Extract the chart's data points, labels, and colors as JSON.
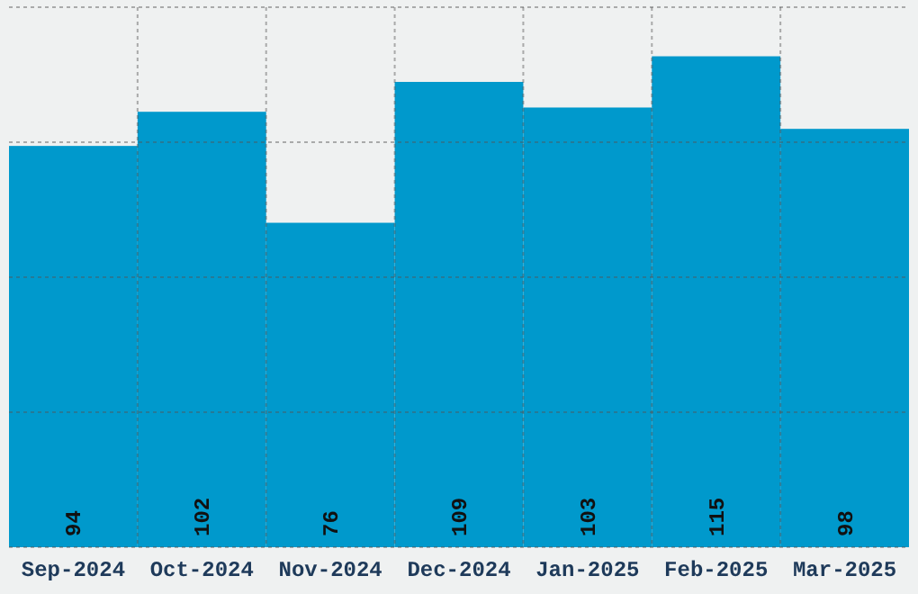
{
  "chart_data": {
    "type": "bar",
    "categories": [
      "Sep-2024",
      "Oct-2024",
      "Nov-2024",
      "Dec-2024",
      "Jan-2025",
      "Feb-2025",
      "Mar-2025"
    ],
    "values": [
      94,
      102,
      76,
      109,
      103,
      115,
      98
    ],
    "color": "#0099cc",
    "data_labels": true,
    "grid": true,
    "ylim": [
      0,
      126.5
    ],
    "yticks": [
      {
        "value": 0,
        "label": null
      },
      {
        "value": 31.625,
        "label": null
      },
      {
        "value": 63.25,
        "label": null
      },
      {
        "value": 94.875,
        "label": null
      },
      {
        "value": 126.5,
        "label": null
      }
    ],
    "tick_labels": "x"
  }
}
